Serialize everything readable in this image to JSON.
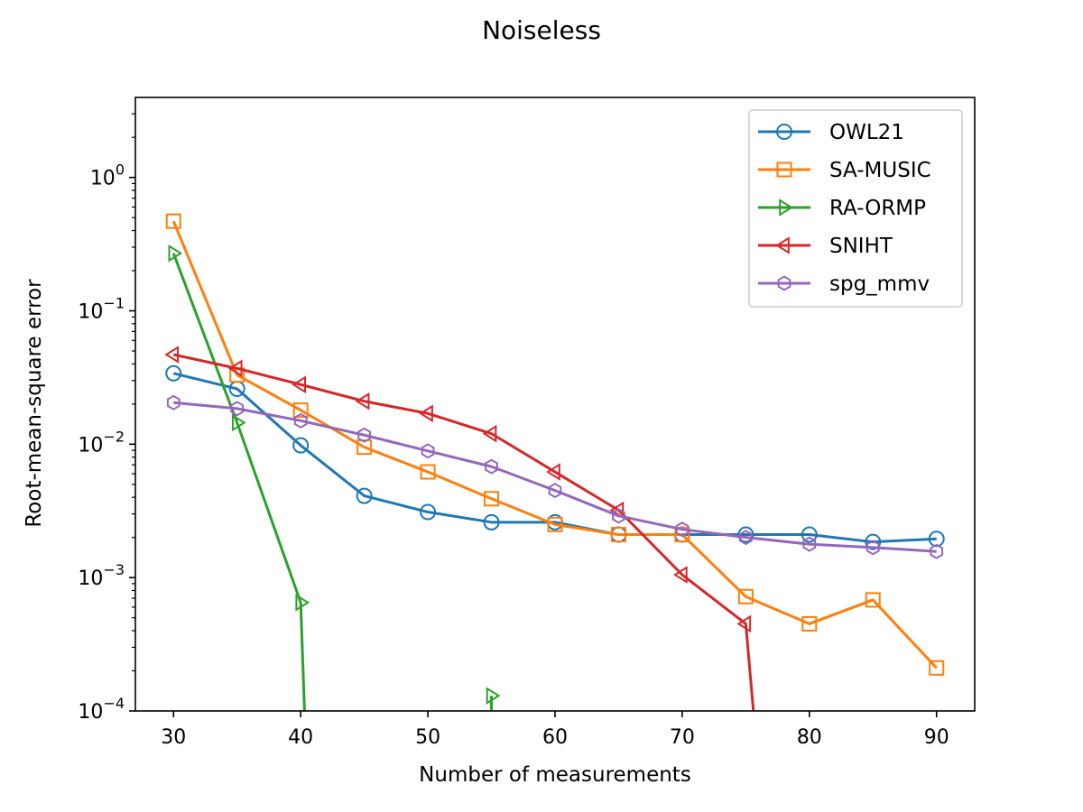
{
  "chart_data": {
    "type": "line",
    "title": "Noiseless",
    "xlabel": "Number of measurements",
    "ylabel": "Root-mean-square error",
    "yscale": "log",
    "xlim": [
      27,
      93
    ],
    "ylim_log10": [
      -4,
      0.6
    ],
    "x_ticks": [
      30,
      40,
      50,
      60,
      70,
      80,
      90
    ],
    "y_ticks": [
      {
        "exp": 0,
        "base": "10",
        "sup": "0"
      },
      {
        "exp": -1,
        "base": "10",
        "sup": "−1"
      },
      {
        "exp": -2,
        "base": "10",
        "sup": "−2"
      },
      {
        "exp": -3,
        "base": "10",
        "sup": "−3"
      },
      {
        "exp": -4,
        "base": "10",
        "sup": "−4"
      }
    ],
    "legend_position": "top-right",
    "series": [
      {
        "name": "OWL21",
        "color": "#1f77b4",
        "marker": "circle",
        "x": [
          30,
          35,
          40,
          45,
          50,
          55,
          60,
          65,
          70,
          75,
          80,
          85,
          90
        ],
        "y": [
          0.034,
          0.026,
          0.0098,
          0.0041,
          0.0031,
          0.0026,
          0.0026,
          0.0021,
          0.0021,
          0.0021,
          0.0021,
          0.00185,
          0.00195
        ]
      },
      {
        "name": "SA-MUSIC",
        "color": "#ff7f0e",
        "marker": "square",
        "x": [
          30,
          35,
          40,
          45,
          50,
          55,
          60,
          65,
          70,
          75,
          80,
          85,
          90
        ],
        "y": [
          0.47,
          0.033,
          0.018,
          0.0095,
          0.0062,
          0.0039,
          0.0025,
          0.0021,
          0.0021,
          0.00072,
          0.00045,
          0.00068,
          0.00021
        ]
      },
      {
        "name": "RA-ORMP",
        "color": "#2ca02c",
        "marker": "triangle-right",
        "x": [
          30,
          35,
          40,
          55
        ],
        "y": [
          0.27,
          0.0145,
          0.00065,
          0.00013
        ],
        "line_segments": [
          [
            30,
            0.27
          ],
          [
            35,
            0.0145
          ],
          [
            40,
            0.00065
          ],
          [
            40.3,
            0.0001
          ]
        ],
        "line_segments_2": [
          [
            55,
            0.00013
          ],
          [
            55,
            0.0001
          ]
        ]
      },
      {
        "name": "SNIHT",
        "color": "#d62728",
        "marker": "triangle-left",
        "x": [
          30,
          35,
          40,
          45,
          50,
          55,
          60,
          65,
          70,
          75
        ],
        "y": [
          0.047,
          0.037,
          0.028,
          0.021,
          0.017,
          0.012,
          0.0062,
          0.0032,
          0.00105,
          0.00045
        ],
        "line_segments": [
          [
            30,
            0.047
          ],
          [
            35,
            0.037
          ],
          [
            40,
            0.028
          ],
          [
            45,
            0.021
          ],
          [
            50,
            0.017
          ],
          [
            55,
            0.012
          ],
          [
            60,
            0.0062
          ],
          [
            65,
            0.0032
          ],
          [
            70,
            0.00105
          ],
          [
            75,
            0.00045
          ],
          [
            75.6,
            0.0001
          ]
        ]
      },
      {
        "name": "spg_mmv",
        "color": "#9467bd",
        "marker": "hexagon",
        "x": [
          30,
          35,
          40,
          45,
          50,
          55,
          60,
          65,
          70,
          75,
          80,
          85,
          90
        ],
        "y": [
          0.0205,
          0.0185,
          0.015,
          0.0117,
          0.0089,
          0.0068,
          0.0045,
          0.0029,
          0.0023,
          0.002,
          0.00178,
          0.00168,
          0.00157
        ]
      }
    ]
  }
}
